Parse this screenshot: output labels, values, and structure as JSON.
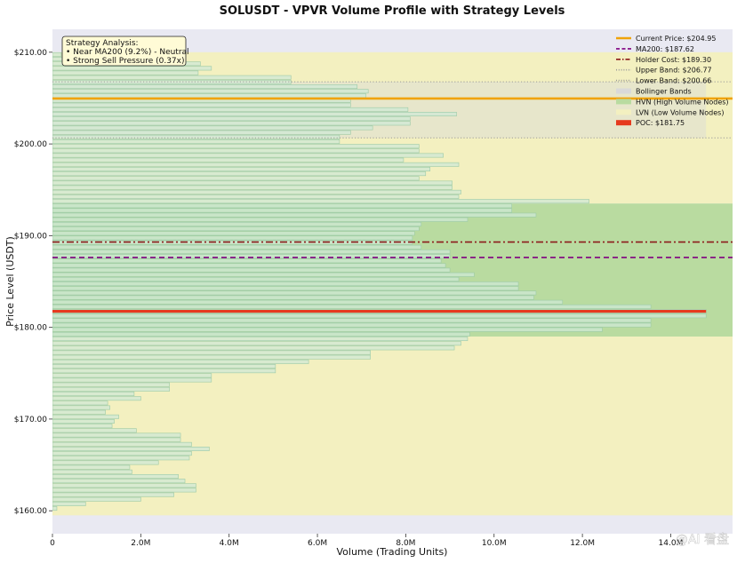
{
  "chart_data": {
    "type": "bar",
    "orientation": "horizontal",
    "title": "SOLUSDT - VPVR Volume Profile with Strategy Levels",
    "xlabel": "Volume (Trading Units)",
    "ylabel": "Price Level (USDT)",
    "xlim": [
      0,
      15400000
    ],
    "ylim": [
      157.5,
      212.5
    ],
    "x_ticks": [
      {
        "value": 0,
        "label": "0"
      },
      {
        "value": 2000000,
        "label": "2.0M"
      },
      {
        "value": 4000000,
        "label": "4.0M"
      },
      {
        "value": 6000000,
        "label": "6.0M"
      },
      {
        "value": 8000000,
        "label": "8.0M"
      },
      {
        "value": 10000000,
        "label": "10.0M"
      },
      {
        "value": 12000000,
        "label": "12.0M"
      },
      {
        "value": 14000000,
        "label": "14.0M"
      }
    ],
    "y_ticks": [
      {
        "value": 160,
        "label": "$160.00"
      },
      {
        "value": 170,
        "label": "$170.00"
      },
      {
        "value": 180,
        "label": "$180.00"
      },
      {
        "value": 190,
        "label": "$190.00"
      },
      {
        "value": 200,
        "label": "$200.00"
      },
      {
        "value": 210,
        "label": "$210.00"
      }
    ],
    "bin_size": 0.5,
    "price_bins": [
      160.0,
      160.5,
      161.0,
      161.5,
      162.0,
      162.5,
      163.0,
      163.5,
      164.0,
      164.5,
      165.0,
      165.5,
      166.0,
      166.5,
      167.0,
      167.5,
      168.0,
      168.5,
      169.0,
      169.5,
      170.0,
      170.5,
      171.0,
      171.5,
      172.0,
      172.5,
      173.0,
      173.5,
      174.0,
      174.5,
      175.0,
      175.5,
      176.0,
      176.5,
      177.0,
      177.5,
      178.0,
      178.5,
      179.0,
      179.5,
      180.0,
      180.5,
      181.0,
      181.5,
      182.0,
      182.5,
      183.0,
      183.5,
      184.0,
      184.5,
      185.0,
      185.5,
      186.0,
      186.5,
      187.0,
      187.5,
      188.0,
      188.5,
      189.0,
      189.5,
      190.0,
      190.5,
      191.0,
      191.5,
      192.0,
      192.5,
      193.0,
      193.5,
      194.0,
      194.5,
      195.0,
      195.5,
      196.0,
      196.5,
      197.0,
      197.5,
      198.0,
      198.5,
      199.0,
      199.5,
      200.0,
      200.5,
      201.0,
      201.5,
      202.0,
      202.5,
      203.0,
      203.5,
      204.0,
      204.5,
      205.0,
      205.5,
      206.0,
      206.5,
      207.0,
      207.5,
      208.0,
      208.5,
      209.0,
      209.5
    ],
    "volumes": [
      100000,
      750000,
      2000000,
      2750000,
      3250000,
      3250000,
      3000000,
      2850000,
      1800000,
      1750000,
      2400000,
      3100000,
      3150000,
      3550000,
      3150000,
      2900000,
      2900000,
      1900000,
      1350000,
      1400000,
      1500000,
      1200000,
      1300000,
      1250000,
      2000000,
      1850000,
      2650000,
      2650000,
      3600000,
      3600000,
      5050000,
      5050000,
      5800000,
      7200000,
      7200000,
      9100000,
      9250000,
      9400000,
      9450000,
      12450000,
      13550000,
      13550000,
      14800000,
      14800000,
      13550000,
      11550000,
      10900000,
      10950000,
      10550000,
      10550000,
      9200000,
      9550000,
      9000000,
      8900000,
      8800000,
      9000000,
      9000000,
      8350000,
      8150000,
      8150000,
      8200000,
      8300000,
      8350000,
      9400000,
      10950000,
      10400000,
      10400000,
      12150000,
      9200000,
      9250000,
      9050000,
      9050000,
      8300000,
      8450000,
      8550000,
      9200000,
      7950000,
      8850000,
      8300000,
      8300000,
      6500000,
      6500000,
      6750000,
      7250000,
      8100000,
      8100000,
      9150000,
      8050000,
      6750000,
      6750000,
      7100000,
      7150000,
      6900000,
      5400000,
      5400000,
      3300000,
      3600000,
      3350000,
      1200000,
      200000
    ],
    "hvn_range": [
      179.0,
      193.5
    ],
    "lvn_ranges": [
      [
        159.5,
        179.0
      ],
      [
        193.5,
        210.0
      ]
    ],
    "bollinger": {
      "upper": 206.77,
      "lower": 200.66
    },
    "levels": {
      "current_price": 204.95,
      "ma200": 187.62,
      "holder_cost": 189.3,
      "poc": 181.75
    },
    "legend": {
      "placement": "top-right",
      "items": [
        {
          "label": "Current Price: $204.95",
          "kind": "line",
          "color": "#f0a30a",
          "style": "solid"
        },
        {
          "label": "MA200: $187.62",
          "kind": "line",
          "color": "#800080",
          "style": "dashed"
        },
        {
          "label": "Holder Cost: $189.30",
          "kind": "line",
          "color": "#8b1a1a",
          "style": "dashdot"
        },
        {
          "label": "Upper Band: $206.77",
          "kind": "line",
          "color": "#999999",
          "style": "dotted"
        },
        {
          "label": "Lower Band: $200.66",
          "kind": "line",
          "color": "#999999",
          "style": "dotted"
        },
        {
          "label": "Bollinger Bands",
          "kind": "patch",
          "color": "#d9d9d9"
        },
        {
          "label": "HVN (High Volume Nodes)",
          "kind": "patch",
          "color": "#b9dba0"
        },
        {
          "label": "LVN (Low Volume Nodes)",
          "kind": "patch",
          "color": "#f3f0c0"
        },
        {
          "label": "POC: $181.75",
          "kind": "patch",
          "color": "#e63a1e"
        }
      ]
    },
    "annotation": {
      "title": "Strategy Analysis:",
      "lines": [
        "• Near MA200 (9.2%) - Neutral",
        "• Strong Sell Pressure (0.37x)"
      ]
    },
    "colors": {
      "plot_bg": "#e9e9f2",
      "bar_fill": "#cfe8d6",
      "bar_stroke": "#9ccaa6",
      "hvn": "#b9dba0",
      "lvn": "#f3f0c0",
      "bollinger": "#d9d9d9",
      "poc": "#e63a1e",
      "current_price": "#f0a30a",
      "ma200": "#800080",
      "holder_cost": "#8b1a1a",
      "band": "#999999"
    }
  },
  "watermark": "@AI 看盘"
}
